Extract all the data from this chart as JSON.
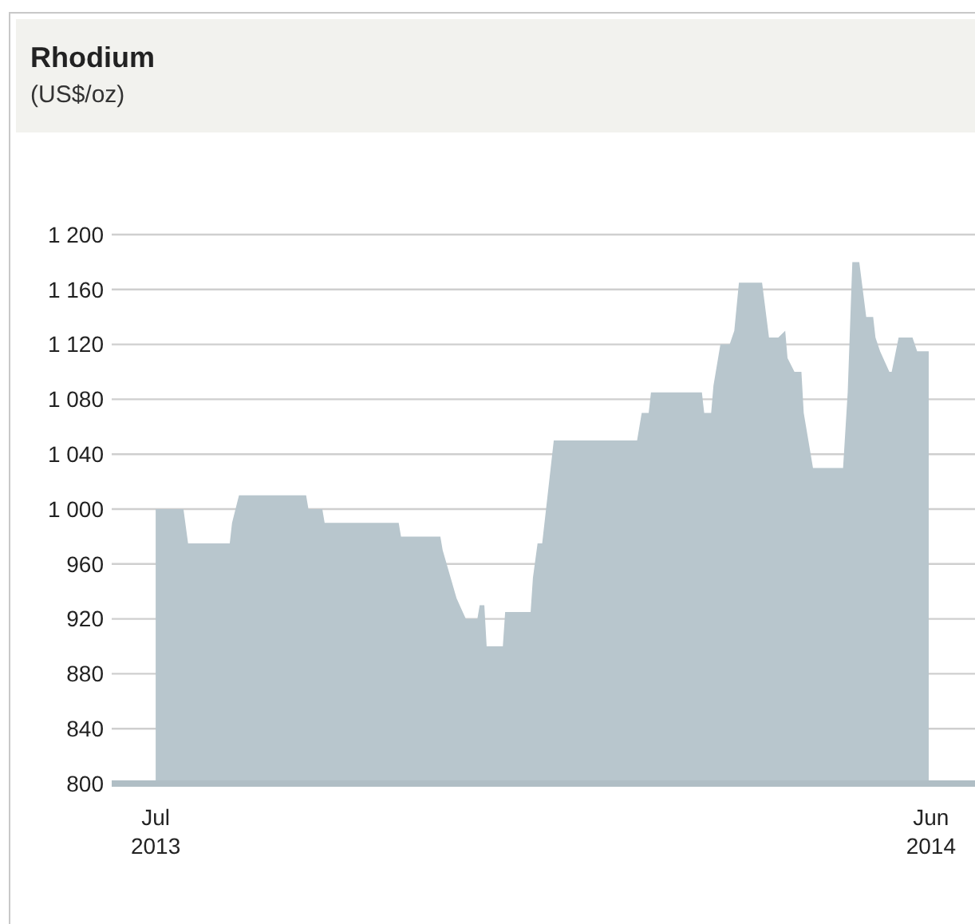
{
  "chart_data": {
    "type": "area",
    "title": "Rhodium",
    "subtitle": "(US$/oz)",
    "x": [
      "2013-07-01",
      "2013-07-13",
      "2013-07-15",
      "2013-08-02",
      "2013-08-03",
      "2013-08-06",
      "2013-09-04",
      "2013-09-05",
      "2013-09-11",
      "2013-09-12",
      "2013-10-14",
      "2013-10-15",
      "2013-11-01",
      "2013-11-02",
      "2013-11-08",
      "2013-11-12",
      "2013-11-17",
      "2013-11-18",
      "2013-11-20",
      "2013-11-21",
      "2013-11-28",
      "2013-11-29",
      "2013-12-10",
      "2013-12-11",
      "2013-12-13",
      "2013-12-15",
      "2013-12-20",
      "2014-01-25",
      "2014-01-27",
      "2014-01-30",
      "2014-01-31",
      "2014-02-22",
      "2014-02-23",
      "2014-02-26",
      "2014-02-27",
      "2014-03-02",
      "2014-03-06",
      "2014-03-08",
      "2014-03-10",
      "2014-03-20",
      "2014-03-23",
      "2014-03-27",
      "2014-03-30",
      "2014-03-31",
      "2014-04-03",
      "2014-04-06",
      "2014-04-07",
      "2014-04-11",
      "2014-04-24",
      "2014-04-26",
      "2014-04-28",
      "2014-05-01",
      "2014-05-04",
      "2014-05-07",
      "2014-05-08",
      "2014-05-10",
      "2014-05-14",
      "2014-05-15",
      "2014-05-18",
      "2014-05-24",
      "2014-05-26",
      "2014-05-31"
    ],
    "series": [
      {
        "color": "#b8c6cd",
        "values": [
          1000,
          1000,
          975,
          975,
          990,
          1010,
          1010,
          1000,
          1000,
          990,
          990,
          980,
          980,
          970,
          935,
          920,
          920,
          930,
          930,
          900,
          900,
          925,
          925,
          950,
          975,
          975,
          1050,
          1050,
          1070,
          1070,
          1085,
          1085,
          1070,
          1070,
          1090,
          1120,
          1120,
          1130,
          1165,
          1165,
          1125,
          1125,
          1130,
          1110,
          1100,
          1100,
          1070,
          1030,
          1030,
          1085,
          1180,
          1180,
          1140,
          1140,
          1125,
          1115,
          1100,
          1100,
          1125,
          1125,
          1115,
          1115
        ]
      }
    ],
    "xlim": [
      "2013-06-12",
      "2014-06-20"
    ],
    "xticks": [
      {
        "value": "2013-07-01",
        "label": "Jul\n2013"
      },
      {
        "value": "2014-06-01",
        "label": "Jun\n2014"
      }
    ],
    "ylim": [
      800,
      1200
    ],
    "yticks": [
      {
        "value": 800,
        "label": "800"
      },
      {
        "value": 840,
        "label": "840"
      },
      {
        "value": 880,
        "label": "880"
      },
      {
        "value": 920,
        "label": "920"
      },
      {
        "value": 960,
        "label": "960"
      },
      {
        "value": 1000,
        "label": "1 000"
      },
      {
        "value": 1040,
        "label": "1 040"
      },
      {
        "value": 1080,
        "label": "1 080"
      },
      {
        "value": 1120,
        "label": "1 120"
      },
      {
        "value": 1160,
        "label": "1 160"
      },
      {
        "value": 1200,
        "label": "1 200"
      }
    ],
    "grid": "y"
  }
}
